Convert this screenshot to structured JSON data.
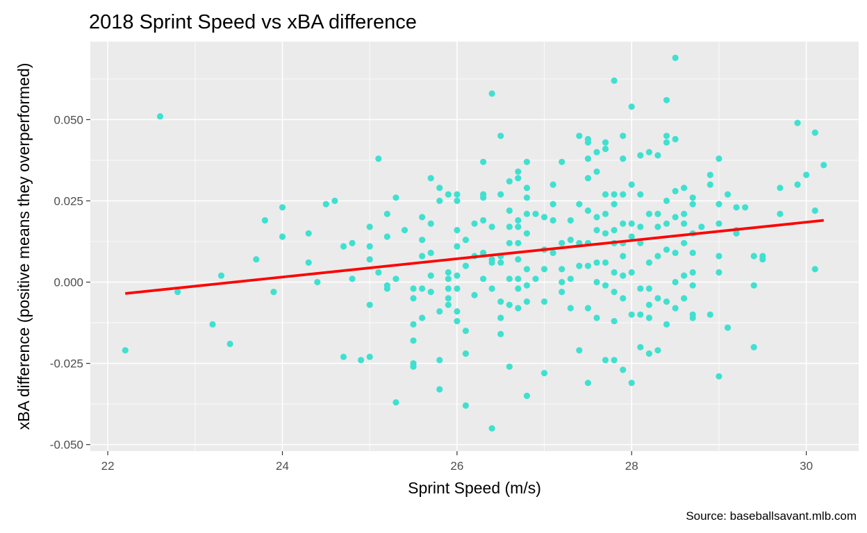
{
  "chart_data": {
    "type": "scatter",
    "title": "2018 Sprint Speed vs xBA difference",
    "xlabel": "Sprint Speed (m/s)",
    "ylabel": "xBA difference (positive means they overperformed)",
    "caption": "Source: baseballsavant.mlb.com",
    "xlim": [
      21.8,
      30.6
    ],
    "ylim": [
      -0.052,
      0.074
    ],
    "x_ticks": [
      22,
      24,
      26,
      28,
      30
    ],
    "y_ticks": [
      -0.05,
      -0.025,
      0,
      0.025,
      0.05
    ],
    "x_tick_labels": [
      "22",
      "24",
      "26",
      "28",
      "30"
    ],
    "y_tick_labels": [
      "-0.050",
      "-0.025",
      "0.000",
      "0.025",
      "0.050"
    ],
    "grid": true,
    "legend": "none",
    "colors": {
      "panel_background": "#ebebeb",
      "grid_major": "#ffffff",
      "point": "#40e0d0",
      "trend_line": "#ff0000"
    },
    "trend_line": {
      "x": [
        22.2,
        30.2
      ],
      "y": [
        -0.0035,
        0.019
      ]
    },
    "series": [
      {
        "points": [
          [
            22.2,
            -0.021
          ],
          [
            22.6,
            0.051
          ],
          [
            22.8,
            -0.003
          ],
          [
            23.2,
            -0.013
          ],
          [
            23.3,
            0.002
          ],
          [
            23.4,
            -0.019
          ],
          [
            23.7,
            0.007
          ],
          [
            23.8,
            0.019
          ],
          [
            23.9,
            -0.003
          ],
          [
            24.0,
            0.023
          ],
          [
            24.0,
            0.014
          ],
          [
            24.3,
            0.015
          ],
          [
            24.3,
            0.006
          ],
          [
            24.4,
            0.0
          ],
          [
            24.5,
            0.024
          ],
          [
            24.6,
            0.025
          ],
          [
            24.7,
            0.011
          ],
          [
            24.7,
            -0.023
          ],
          [
            24.8,
            0.012
          ],
          [
            24.8,
            0.001
          ],
          [
            24.9,
            -0.024
          ],
          [
            25.0,
            0.017
          ],
          [
            25.0,
            0.011
          ],
          [
            25.0,
            0.007
          ],
          [
            25.0,
            -0.007
          ],
          [
            25.0,
            -0.023
          ],
          [
            25.1,
            0.038
          ],
          [
            25.1,
            0.003
          ],
          [
            25.2,
            0.021
          ],
          [
            25.2,
            0.014
          ],
          [
            25.2,
            -0.001
          ],
          [
            25.2,
            -0.002
          ],
          [
            25.3,
            0.026
          ],
          [
            25.3,
            0.001
          ],
          [
            25.3,
            -0.037
          ],
          [
            25.4,
            0.016
          ],
          [
            25.5,
            -0.002
          ],
          [
            25.5,
            -0.005
          ],
          [
            25.5,
            -0.013
          ],
          [
            25.5,
            -0.018
          ],
          [
            25.5,
            -0.025
          ],
          [
            25.5,
            -0.026
          ],
          [
            25.6,
            0.02
          ],
          [
            25.6,
            0.013
          ],
          [
            25.6,
            0.008
          ],
          [
            25.6,
            -0.002
          ],
          [
            25.6,
            -0.011
          ],
          [
            25.7,
            0.032
          ],
          [
            25.7,
            0.018
          ],
          [
            25.7,
            0.009
          ],
          [
            25.7,
            0.002
          ],
          [
            25.7,
            -0.003
          ],
          [
            25.8,
            0.029
          ],
          [
            25.8,
            0.025
          ],
          [
            25.8,
            -0.009
          ],
          [
            25.8,
            -0.024
          ],
          [
            25.8,
            -0.033
          ],
          [
            25.9,
            0.027
          ],
          [
            25.9,
            0.003
          ],
          [
            25.9,
            0.001
          ],
          [
            25.9,
            -0.002
          ],
          [
            25.9,
            -0.005
          ],
          [
            25.9,
            -0.007
          ],
          [
            26.0,
            0.027
          ],
          [
            26.0,
            0.025
          ],
          [
            26.0,
            0.016
          ],
          [
            26.0,
            0.011
          ],
          [
            26.0,
            0.002
          ],
          [
            26.0,
            -0.002
          ],
          [
            26.0,
            -0.009
          ],
          [
            26.0,
            -0.012
          ],
          [
            26.1,
            0.013
          ],
          [
            26.1,
            0.005
          ],
          [
            26.1,
            -0.015
          ],
          [
            26.1,
            -0.022
          ],
          [
            26.1,
            -0.038
          ],
          [
            26.2,
            0.018
          ],
          [
            26.2,
            0.008
          ],
          [
            26.2,
            -0.004
          ],
          [
            26.3,
            0.037
          ],
          [
            26.3,
            0.027
          ],
          [
            26.3,
            0.026
          ],
          [
            26.3,
            0.019
          ],
          [
            26.3,
            0.009
          ],
          [
            26.3,
            0.001
          ],
          [
            26.4,
            0.058
          ],
          [
            26.4,
            0.017
          ],
          [
            26.4,
            0.007
          ],
          [
            26.4,
            0.006
          ],
          [
            26.4,
            -0.002
          ],
          [
            26.4,
            -0.045
          ],
          [
            26.5,
            0.045
          ],
          [
            26.5,
            0.027
          ],
          [
            26.5,
            0.008
          ],
          [
            26.5,
            0.006
          ],
          [
            26.5,
            -0.006
          ],
          [
            26.5,
            -0.011
          ],
          [
            26.5,
            -0.016
          ],
          [
            26.6,
            0.031
          ],
          [
            26.6,
            0.022
          ],
          [
            26.6,
            0.017
          ],
          [
            26.6,
            0.012
          ],
          [
            26.6,
            0.001
          ],
          [
            26.6,
            -0.007
          ],
          [
            26.6,
            -0.026
          ],
          [
            26.7,
            0.034
          ],
          [
            26.7,
            0.032
          ],
          [
            26.7,
            0.019
          ],
          [
            26.7,
            0.017
          ],
          [
            26.7,
            0.012
          ],
          [
            26.7,
            0.007
          ],
          [
            26.7,
            0.001
          ],
          [
            26.7,
            -0.002
          ],
          [
            26.7,
            -0.008
          ],
          [
            26.8,
            0.037
          ],
          [
            26.8,
            0.029
          ],
          [
            26.8,
            0.026
          ],
          [
            26.8,
            0.021
          ],
          [
            26.8,
            0.015
          ],
          [
            26.8,
            0.004
          ],
          [
            26.8,
            -0.001
          ],
          [
            26.8,
            -0.006
          ],
          [
            26.8,
            -0.035
          ],
          [
            26.9,
            0.021
          ],
          [
            26.9,
            0.001
          ],
          [
            27.0,
            0.02
          ],
          [
            27.0,
            0.01
          ],
          [
            27.0,
            0.004
          ],
          [
            27.0,
            -0.006
          ],
          [
            27.0,
            -0.028
          ],
          [
            27.1,
            0.03
          ],
          [
            27.1,
            0.024
          ],
          [
            27.1,
            0.019
          ],
          [
            27.1,
            0.009
          ],
          [
            27.2,
            0.037
          ],
          [
            27.2,
            0.012
          ],
          [
            27.2,
            0.004
          ],
          [
            27.2,
            0.0
          ],
          [
            27.2,
            -0.003
          ],
          [
            27.3,
            0.019
          ],
          [
            27.3,
            0.013
          ],
          [
            27.3,
            0.001
          ],
          [
            27.3,
            -0.008
          ],
          [
            27.4,
            0.045
          ],
          [
            27.4,
            0.024
          ],
          [
            27.4,
            0.012
          ],
          [
            27.4,
            0.005
          ],
          [
            27.4,
            -0.021
          ],
          [
            27.5,
            0.044
          ],
          [
            27.5,
            0.043
          ],
          [
            27.5,
            0.038
          ],
          [
            27.5,
            0.032
          ],
          [
            27.5,
            0.022
          ],
          [
            27.5,
            0.012
          ],
          [
            27.5,
            0.005
          ],
          [
            27.5,
            -0.008
          ],
          [
            27.5,
            -0.031
          ],
          [
            27.6,
            0.04
          ],
          [
            27.6,
            0.034
          ],
          [
            27.6,
            0.02
          ],
          [
            27.6,
            0.016
          ],
          [
            27.6,
            0.006
          ],
          [
            27.6,
            0.0
          ],
          [
            27.6,
            -0.011
          ],
          [
            27.7,
            0.043
          ],
          [
            27.7,
            0.041
          ],
          [
            27.7,
            0.027
          ],
          [
            27.7,
            0.021
          ],
          [
            27.7,
            0.015
          ],
          [
            27.7,
            0.006
          ],
          [
            27.7,
            -0.001
          ],
          [
            27.7,
            -0.024
          ],
          [
            27.8,
            0.062
          ],
          [
            27.8,
            0.027
          ],
          [
            27.8,
            0.024
          ],
          [
            27.8,
            0.016
          ],
          [
            27.8,
            0.012
          ],
          [
            27.8,
            0.003
          ],
          [
            27.8,
            -0.003
          ],
          [
            27.8,
            -0.012
          ],
          [
            27.8,
            -0.024
          ],
          [
            27.9,
            0.045
          ],
          [
            27.9,
            0.038
          ],
          [
            27.9,
            0.027
          ],
          [
            27.9,
            0.018
          ],
          [
            27.9,
            0.012
          ],
          [
            27.9,
            0.008
          ],
          [
            27.9,
            0.002
          ],
          [
            27.9,
            -0.005
          ],
          [
            27.9,
            -0.027
          ],
          [
            28.0,
            0.054
          ],
          [
            28.0,
            0.03
          ],
          [
            28.0,
            0.018
          ],
          [
            28.0,
            0.014
          ],
          [
            28.0,
            0.003
          ],
          [
            28.0,
            -0.01
          ],
          [
            28.0,
            -0.031
          ],
          [
            28.1,
            0.039
          ],
          [
            28.1,
            0.027
          ],
          [
            28.1,
            0.017
          ],
          [
            28.1,
            0.012
          ],
          [
            28.1,
            -0.002
          ],
          [
            28.1,
            -0.01
          ],
          [
            28.1,
            -0.02
          ],
          [
            28.2,
            0.04
          ],
          [
            28.2,
            0.021
          ],
          [
            28.2,
            0.006
          ],
          [
            28.2,
            -0.002
          ],
          [
            28.2,
            -0.007
          ],
          [
            28.2,
            -0.011
          ],
          [
            28.2,
            -0.022
          ],
          [
            28.3,
            0.039
          ],
          [
            28.3,
            0.021
          ],
          [
            28.3,
            0.017
          ],
          [
            28.3,
            0.008
          ],
          [
            28.3,
            -0.005
          ],
          [
            28.3,
            -0.021
          ],
          [
            28.4,
            0.056
          ],
          [
            28.4,
            0.045
          ],
          [
            28.4,
            0.043
          ],
          [
            28.4,
            0.025
          ],
          [
            28.4,
            0.018
          ],
          [
            28.4,
            0.01
          ],
          [
            28.4,
            -0.006
          ],
          [
            28.4,
            -0.013
          ],
          [
            28.5,
            0.069
          ],
          [
            28.5,
            0.044
          ],
          [
            28.5,
            0.028
          ],
          [
            28.5,
            0.02
          ],
          [
            28.5,
            0.009
          ],
          [
            28.5,
            0.0
          ],
          [
            28.5,
            -0.008
          ],
          [
            28.6,
            0.029
          ],
          [
            28.6,
            0.021
          ],
          [
            28.6,
            0.018
          ],
          [
            28.6,
            0.012
          ],
          [
            28.6,
            0.002
          ],
          [
            28.6,
            -0.005
          ],
          [
            28.7,
            0.026
          ],
          [
            28.7,
            0.024
          ],
          [
            28.7,
            0.015
          ],
          [
            28.7,
            0.009
          ],
          [
            28.7,
            0.003
          ],
          [
            28.7,
            -0.001
          ],
          [
            28.7,
            -0.01
          ],
          [
            28.7,
            -0.011
          ],
          [
            28.8,
            0.017
          ],
          [
            28.9,
            0.033
          ],
          [
            28.9,
            0.03
          ],
          [
            28.9,
            -0.01
          ],
          [
            29.0,
            0.038
          ],
          [
            29.0,
            0.024
          ],
          [
            29.0,
            0.018
          ],
          [
            29.0,
            0.008
          ],
          [
            29.0,
            0.003
          ],
          [
            29.0,
            -0.029
          ],
          [
            29.1,
            0.027
          ],
          [
            29.1,
            -0.014
          ],
          [
            29.2,
            0.023
          ],
          [
            29.2,
            0.016
          ],
          [
            29.2,
            0.015
          ],
          [
            29.3,
            0.023
          ],
          [
            29.4,
            0.008
          ],
          [
            29.4,
            -0.001
          ],
          [
            29.4,
            -0.02
          ],
          [
            29.5,
            0.008
          ],
          [
            29.5,
            0.007
          ],
          [
            29.7,
            0.029
          ],
          [
            29.7,
            0.021
          ],
          [
            29.9,
            0.049
          ],
          [
            29.9,
            0.03
          ],
          [
            30.0,
            0.033
          ],
          [
            30.1,
            0.046
          ],
          [
            30.1,
            0.022
          ],
          [
            30.1,
            0.004
          ],
          [
            30.2,
            0.036
          ]
        ]
      }
    ]
  }
}
